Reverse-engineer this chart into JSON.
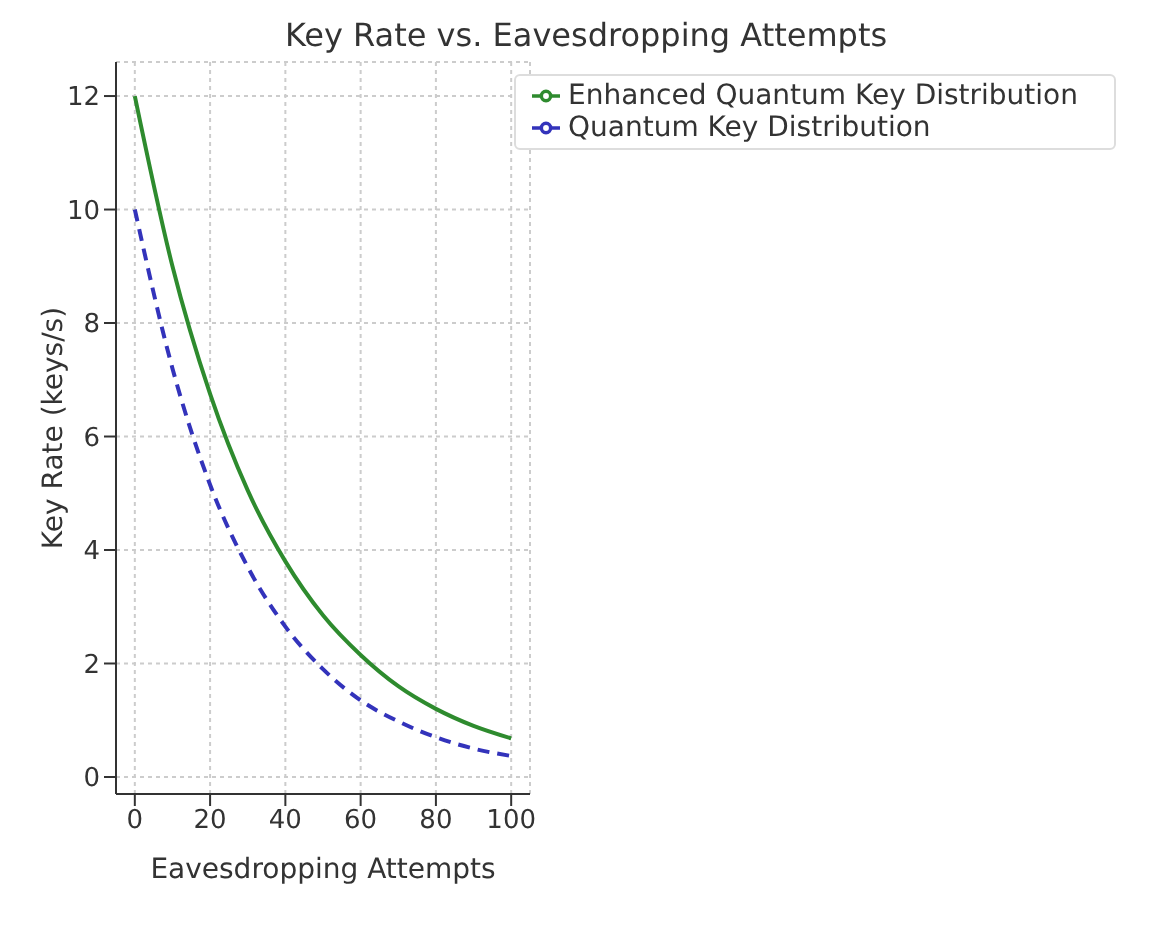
{
  "chart_data": {
    "type": "line",
    "title": "Key Rate vs. Eavesdropping Attempts",
    "xlabel": "Eavesdropping Attempts",
    "ylabel": "Key Rate (keys/s)",
    "x": [
      0,
      10,
      20,
      30,
      40,
      50,
      60,
      70,
      80,
      90,
      100
    ],
    "series": [
      {
        "name": "Quantum Key Distribution",
        "color": "#3333bb",
        "line_style": "dashed",
        "values": [
          10,
          7.2,
          5.15,
          3.7,
          2.65,
          1.9,
          1.35,
          0.98,
          0.7,
          0.5,
          0.37
        ]
      },
      {
        "name": "Enhanced Quantum Key Distribution",
        "color": "#2e8b2e",
        "line_style": "solid",
        "values": [
          12,
          9.0,
          6.75,
          5.05,
          3.8,
          2.85,
          2.15,
          1.6,
          1.2,
          0.9,
          0.68
        ]
      }
    ],
    "xlim": [
      -5,
      105
    ],
    "xticks": [
      0,
      20,
      40,
      60,
      80,
      100
    ],
    "ylim": [
      -0.3,
      12.6
    ],
    "yticks": [
      0,
      2,
      4,
      6,
      8,
      10,
      12
    ],
    "grid": true,
    "legend": "top right",
    "marker": "none"
  }
}
